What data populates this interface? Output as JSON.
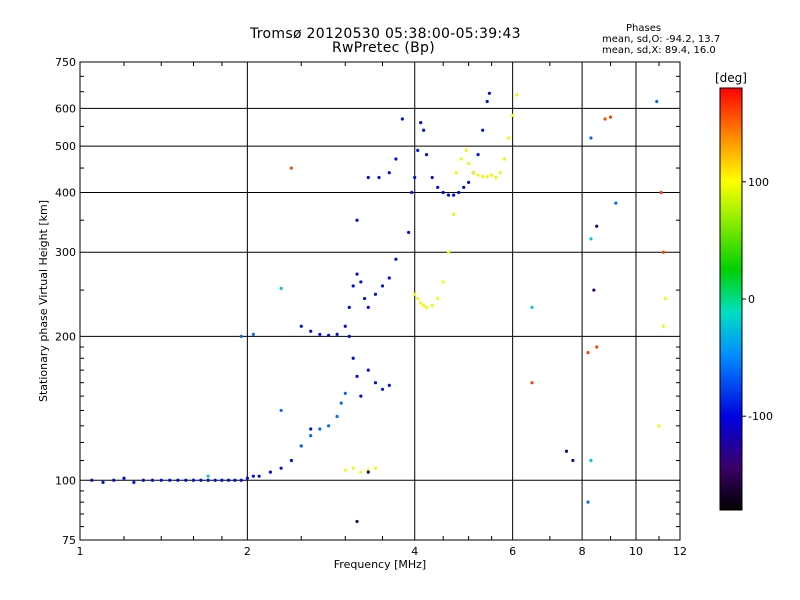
{
  "chart_data": {
    "type": "scatter",
    "title": "Tromsø 20120530 05:38:00-05:39:43",
    "subtitle": "RwPretec (Bp)",
    "xlabel": "Frequency [MHz]",
    "ylabel": "Stationary phase Virtual Height [km]",
    "x_scale": "log",
    "y_scale": "log",
    "xlim": [
      1,
      12
    ],
    "ylim": [
      75,
      750
    ],
    "x_ticks": [
      "1",
      "2",
      "4",
      "6",
      "8",
      "10",
      "12"
    ],
    "y_ticks": [
      "750",
      "600",
      "500",
      "400",
      "300",
      "200",
      "100",
      "75"
    ],
    "grid": true,
    "phases": {
      "heading": "Phases",
      "line_o": "mean, sd,O: -94.2, 13.7",
      "line_x": "mean, sd,X:  89.4, 16.0"
    },
    "colorbar": {
      "label": "[deg]",
      "range": [
        -180,
        180
      ],
      "ticks": [
        "100",
        "0",
        "-100"
      ]
    },
    "series": [
      {
        "phase": -95,
        "points": [
          [
            1.05,
            100
          ],
          [
            1.1,
            99
          ],
          [
            1.15,
            100
          ],
          [
            1.2,
            101
          ],
          [
            1.25,
            99
          ],
          [
            1.3,
            100
          ],
          [
            1.35,
            100
          ],
          [
            1.4,
            100
          ],
          [
            1.45,
            100
          ],
          [
            1.5,
            100
          ],
          [
            1.55,
            100
          ],
          [
            1.6,
            100
          ],
          [
            1.65,
            100
          ],
          [
            1.7,
            100
          ],
          [
            1.75,
            100
          ],
          [
            1.8,
            100
          ],
          [
            1.85,
            100
          ],
          [
            1.9,
            100
          ],
          [
            1.95,
            100
          ],
          [
            2.0,
            101
          ],
          [
            2.05,
            102
          ],
          [
            2.1,
            102
          ],
          [
            2.2,
            104
          ],
          [
            2.3,
            106
          ],
          [
            2.4,
            110
          ],
          [
            2.5,
            118
          ],
          [
            2.6,
            128
          ],
          [
            2.5,
            210
          ],
          [
            2.6,
            205
          ],
          [
            2.7,
            202
          ],
          [
            2.8,
            201
          ],
          [
            2.9,
            202
          ],
          [
            3.0,
            210
          ],
          [
            3.05,
            230
          ],
          [
            3.1,
            255
          ],
          [
            3.15,
            270
          ],
          [
            3.2,
            260
          ],
          [
            3.25,
            240
          ],
          [
            3.3,
            230
          ],
          [
            3.4,
            245
          ],
          [
            3.5,
            255
          ],
          [
            3.6,
            265
          ],
          [
            3.7,
            290
          ],
          [
            3.05,
            200
          ],
          [
            3.1,
            180
          ],
          [
            3.15,
            165
          ],
          [
            3.2,
            150
          ],
          [
            3.3,
            170
          ],
          [
            3.4,
            160
          ],
          [
            3.5,
            155
          ],
          [
            3.6,
            158
          ],
          [
            3.15,
            350
          ],
          [
            3.3,
            430
          ],
          [
            3.45,
            430
          ],
          [
            3.6,
            440
          ],
          [
            3.7,
            470
          ],
          [
            3.8,
            570
          ],
          [
            3.9,
            330
          ],
          [
            3.95,
            400
          ],
          [
            4.0,
            430
          ],
          [
            4.05,
            490
          ],
          [
            4.1,
            560
          ],
          [
            4.15,
            540
          ],
          [
            4.2,
            480
          ],
          [
            4.3,
            430
          ],
          [
            4.4,
            410
          ],
          [
            4.5,
            400
          ],
          [
            4.6,
            395
          ],
          [
            4.7,
            395
          ],
          [
            4.8,
            400
          ],
          [
            4.9,
            410
          ],
          [
            5.0,
            420
          ],
          [
            5.1,
            440
          ],
          [
            5.2,
            480
          ],
          [
            5.3,
            540
          ],
          [
            5.4,
            620
          ],
          [
            5.45,
            645
          ]
        ]
      },
      {
        "phase": 95,
        "points": [
          [
            4.0,
            245
          ],
          [
            4.05,
            240
          ],
          [
            4.1,
            235
          ],
          [
            4.15,
            232
          ],
          [
            4.2,
            230
          ],
          [
            4.3,
            232
          ],
          [
            4.4,
            240
          ],
          [
            4.5,
            260
          ],
          [
            4.6,
            300
          ],
          [
            4.7,
            360
          ],
          [
            4.75,
            440
          ],
          [
            4.85,
            470
          ],
          [
            4.95,
            490
          ],
          [
            5.0,
            460
          ],
          [
            5.1,
            440
          ],
          [
            5.2,
            435
          ],
          [
            5.3,
            432
          ],
          [
            5.4,
            432
          ],
          [
            5.5,
            435
          ],
          [
            5.6,
            430
          ],
          [
            5.7,
            440
          ],
          [
            5.8,
            470
          ],
          [
            5.9,
            520
          ],
          [
            6.0,
            580
          ],
          [
            6.1,
            640
          ],
          [
            3.0,
            105
          ],
          [
            3.1,
            106
          ],
          [
            3.2,
            104
          ],
          [
            3.3,
            105
          ],
          [
            3.4,
            106
          ],
          [
            11.2,
            210
          ],
          [
            11.3,
            240
          ],
          [
            11.0,
            130
          ]
        ]
      },
      {
        "phase": -60,
        "points": [
          [
            2.3,
            140
          ],
          [
            2.5,
            118
          ],
          [
            2.6,
            124
          ],
          [
            2.7,
            128
          ],
          [
            2.8,
            130
          ],
          [
            2.9,
            136
          ],
          [
            2.95,
            145
          ],
          [
            3.0,
            152
          ],
          [
            1.95,
            200
          ],
          [
            2.05,
            202
          ],
          [
            8.2,
            90
          ],
          [
            8.3,
            520
          ],
          [
            9.2,
            380
          ],
          [
            10.9,
            620
          ]
        ]
      },
      {
        "phase": 160,
        "points": [
          [
            2.4,
            450
          ],
          [
            6.5,
            160
          ],
          [
            8.2,
            185
          ],
          [
            8.5,
            190
          ],
          [
            8.8,
            570
          ],
          [
            9.0,
            575
          ],
          [
            11.2,
            300
          ],
          [
            11.1,
            400
          ]
        ]
      },
      {
        "phase": -20,
        "points": [
          [
            6.5,
            230
          ],
          [
            8.3,
            110
          ],
          [
            2.3,
            252
          ],
          [
            1.7,
            102
          ],
          [
            8.3,
            320
          ]
        ]
      },
      {
        "phase": -135,
        "points": [
          [
            3.15,
            82
          ],
          [
            3.3,
            104
          ],
          [
            7.5,
            115
          ],
          [
            7.7,
            110
          ],
          [
            8.4,
            250
          ],
          [
            8.5,
            340
          ]
        ]
      }
    ]
  }
}
